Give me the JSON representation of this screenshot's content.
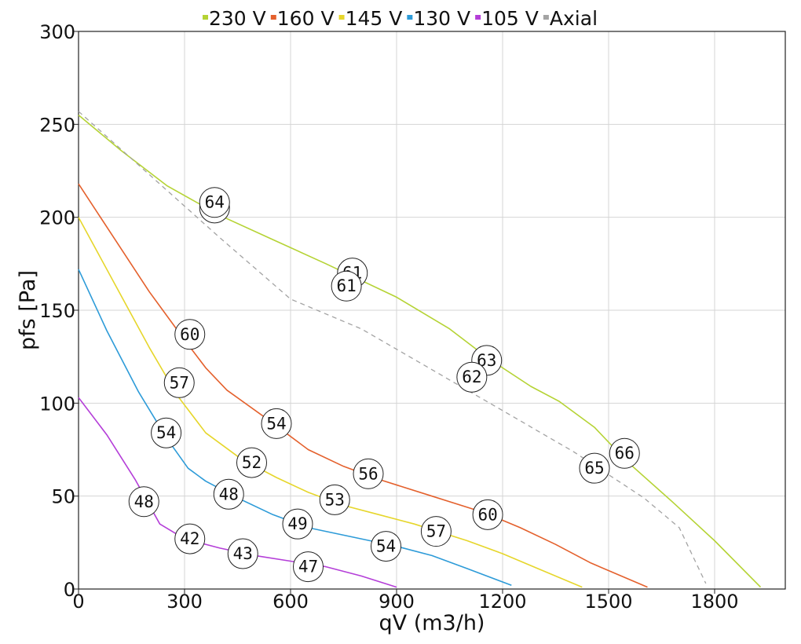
{
  "chart_data": {
    "type": "line",
    "xlabel": "qV (m3/h)",
    "ylabel": "pfs [Pa]",
    "xlim": [
      0,
      2000
    ],
    "ylim": [
      0,
      300
    ],
    "xticks": [
      0,
      300,
      600,
      900,
      1200,
      1500,
      1800
    ],
    "xtick_labels": [
      "0",
      "300",
      "600",
      "900",
      "1200",
      "1500",
      "1800"
    ],
    "yticks": [
      0,
      50,
      100,
      150,
      200,
      250,
      300
    ],
    "ytick_labels": [
      "0",
      "50",
      "100",
      "150",
      "200",
      "250",
      "300"
    ],
    "grid": true,
    "legend_position": "top",
    "series": [
      {
        "name": "230 V",
        "color": "#b5d334",
        "dash": false,
        "points": [
          [
            0,
            255
          ],
          [
            120,
            236
          ],
          [
            250,
            217
          ],
          [
            400,
            201
          ],
          [
            550,
            188
          ],
          [
            700,
            175
          ],
          [
            900,
            157
          ],
          [
            1050,
            140
          ],
          [
            1160,
            124
          ],
          [
            1280,
            109
          ],
          [
            1360,
            101
          ],
          [
            1460,
            87
          ],
          [
            1550,
            69
          ],
          [
            1680,
            47
          ],
          [
            1800,
            26
          ],
          [
            1930,
            1
          ]
        ]
      },
      {
        "name": "160 V",
        "color": "#e4602c",
        "dash": false,
        "points": [
          [
            0,
            218
          ],
          [
            100,
            189
          ],
          [
            200,
            160
          ],
          [
            300,
            134
          ],
          [
            360,
            119
          ],
          [
            420,
            107
          ],
          [
            530,
            92
          ],
          [
            650,
            75
          ],
          [
            750,
            66
          ],
          [
            850,
            59
          ],
          [
            1000,
            50
          ],
          [
            1150,
            41
          ],
          [
            1250,
            33
          ],
          [
            1350,
            24
          ],
          [
            1450,
            14
          ],
          [
            1610,
            1
          ]
        ]
      },
      {
        "name": "145 V",
        "color": "#e6d62b",
        "dash": false,
        "points": [
          [
            0,
            200
          ],
          [
            100,
            165
          ],
          [
            200,
            130
          ],
          [
            280,
            104
          ],
          [
            360,
            84
          ],
          [
            460,
            70
          ],
          [
            560,
            60
          ],
          [
            650,
            52
          ],
          [
            750,
            45
          ],
          [
            850,
            40
          ],
          [
            950,
            35
          ],
          [
            1100,
            26
          ],
          [
            1200,
            19
          ],
          [
            1300,
            11
          ],
          [
            1425,
            1
          ]
        ]
      },
      {
        "name": "130 V",
        "color": "#2d9bd8",
        "dash": false,
        "points": [
          [
            0,
            172
          ],
          [
            80,
            139
          ],
          [
            170,
            106
          ],
          [
            250,
            81
          ],
          [
            310,
            65
          ],
          [
            360,
            58
          ],
          [
            450,
            49
          ],
          [
            550,
            40
          ],
          [
            650,
            33
          ],
          [
            800,
            27
          ],
          [
            900,
            23
          ],
          [
            1000,
            18
          ],
          [
            1100,
            11
          ],
          [
            1225,
            2
          ]
        ]
      },
      {
        "name": "105 V",
        "color": "#b43ed8",
        "dash": false,
        "points": [
          [
            0,
            103
          ],
          [
            80,
            83
          ],
          [
            160,
            59
          ],
          [
            230,
            35
          ],
          [
            300,
            27
          ],
          [
            400,
            22
          ],
          [
            500,
            18
          ],
          [
            600,
            15
          ],
          [
            700,
            12
          ],
          [
            800,
            7
          ],
          [
            900,
            1
          ]
        ]
      },
      {
        "name": "Axial",
        "color": "#a3a3a3",
        "dash": true,
        "points": [
          [
            0,
            257
          ],
          [
            200,
            223
          ],
          [
            400,
            189
          ],
          [
            600,
            156
          ],
          [
            800,
            140
          ],
          [
            1000,
            118
          ],
          [
            1200,
            96
          ],
          [
            1400,
            74
          ],
          [
            1600,
            49
          ],
          [
            1700,
            33
          ],
          [
            1775,
            3
          ]
        ]
      }
    ],
    "annotations": [
      {
        "label": "64",
        "x": 385,
        "y": 205
      },
      {
        "label": "64",
        "x": 385,
        "y": 208
      },
      {
        "label": "61",
        "x": 775,
        "y": 170
      },
      {
        "label": "61",
        "x": 758,
        "y": 163
      },
      {
        "label": "63",
        "x": 1155,
        "y": 123
      },
      {
        "label": "62",
        "x": 1113,
        "y": 114
      },
      {
        "label": "66",
        "x": 1545,
        "y": 73
      },
      {
        "label": "65",
        "x": 1460,
        "y": 65
      },
      {
        "label": "60",
        "x": 315,
        "y": 137
      },
      {
        "label": "54",
        "x": 560,
        "y": 89
      },
      {
        "label": "56",
        "x": 820,
        "y": 62
      },
      {
        "label": "60",
        "x": 1158,
        "y": 40
      },
      {
        "label": "57",
        "x": 285,
        "y": 111
      },
      {
        "label": "52",
        "x": 490,
        "y": 68
      },
      {
        "label": "53",
        "x": 725,
        "y": 48
      },
      {
        "label": "57",
        "x": 1012,
        "y": 31
      },
      {
        "label": "54",
        "x": 248,
        "y": 84
      },
      {
        "label": "48",
        "x": 425,
        "y": 51
      },
      {
        "label": "49",
        "x": 620,
        "y": 35
      },
      {
        "label": "54",
        "x": 870,
        "y": 23
      },
      {
        "label": "48",
        "x": 185,
        "y": 47
      },
      {
        "label": "42",
        "x": 315,
        "y": 27
      },
      {
        "label": "43",
        "x": 465,
        "y": 19
      },
      {
        "label": "47",
        "x": 650,
        "y": 12
      }
    ]
  }
}
